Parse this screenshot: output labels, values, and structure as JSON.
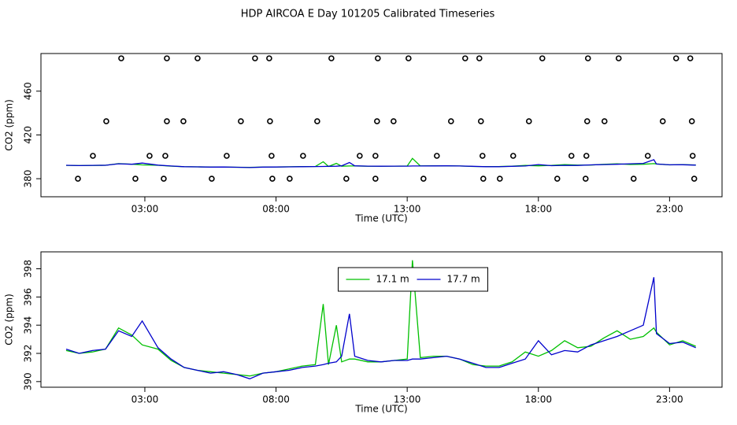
{
  "title": "HDP AIRCOA E  Day 101205  Calibrated Timeseries",
  "chart_data": [
    {
      "type": "line",
      "xlabel": "Time (UTC)",
      "ylabel": "CO2 (ppm)",
      "xlim": [
        -0.96,
        25.0
      ],
      "ylim": [
        363.5,
        494.4
      ],
      "xticks": [
        {
          "value": 3,
          "label": "03:00"
        },
        {
          "value": 8,
          "label": "08:00"
        },
        {
          "value": 13,
          "label": "13:00"
        },
        {
          "value": 18,
          "label": "18:00"
        },
        {
          "value": 23,
          "label": "23:00"
        }
      ],
      "yticks": [
        380,
        420,
        460
      ],
      "x": [
        0,
        0.5,
        1,
        1.5,
        2,
        2.5,
        2.9,
        3.5,
        4,
        4.5,
        5,
        5.5,
        6,
        6.5,
        7,
        7.5,
        8,
        8.5,
        9,
        9.5,
        9.8,
        10,
        10.3,
        10.5,
        10.8,
        11,
        11.5,
        12,
        12.5,
        13,
        13.2,
        13.5,
        14,
        14.5,
        15,
        15.5,
        16,
        16.5,
        17,
        17.5,
        18,
        18.5,
        19,
        19.5,
        20,
        20.5,
        21,
        21.5,
        22,
        22.4,
        22.5,
        23,
        23.5,
        24
      ],
      "series": [
        {
          "color": "#00c000",
          "values": [
            392.2,
            392.0,
            392.1,
            392.3,
            393.8,
            393.3,
            392.6,
            392.3,
            391.5,
            391.0,
            390.8,
            390.7,
            390.6,
            390.5,
            390.4,
            390.6,
            390.7,
            390.9,
            391.1,
            391.2,
            395.5,
            391.2,
            394.0,
            391.4,
            391.6,
            391.6,
            391.4,
            391.4,
            391.5,
            391.6,
            398.6,
            391.7,
            391.8,
            391.8,
            391.6,
            391.2,
            391.1,
            391.1,
            391.4,
            392.1,
            391.8,
            392.2,
            392.9,
            392.4,
            392.5,
            393.1,
            393.6,
            393.0,
            393.2,
            393.8,
            393.5,
            392.6,
            392.9,
            392.5
          ]
        },
        {
          "color": "#0000cc",
          "values": [
            392.3,
            392.0,
            392.2,
            392.3,
            393.6,
            393.2,
            394.3,
            392.4,
            391.6,
            391.0,
            390.8,
            390.6,
            390.7,
            390.5,
            390.2,
            390.6,
            390.7,
            390.8,
            391.0,
            391.1,
            391.2,
            391.3,
            391.4,
            391.8,
            394.8,
            391.8,
            391.5,
            391.4,
            391.5,
            391.5,
            391.6,
            391.6,
            391.7,
            391.8,
            391.6,
            391.3,
            391.0,
            391.0,
            391.3,
            391.6,
            392.9,
            391.9,
            392.2,
            392.1,
            392.6,
            392.9,
            393.2,
            393.6,
            394.0,
            397.4,
            393.4,
            392.7,
            392.8,
            392.4
          ]
        },
        {
          "color": "#000000",
          "marker": "circle",
          "x": [
            2.1,
            3.84,
            5.01,
            7.2,
            7.74,
            10.11,
            11.88,
            13.05,
            15.21,
            15.75,
            18.15,
            19.89,
            21.06,
            23.25,
            23.79,
            1.53,
            3.84,
            4.47,
            6.66,
            7.77,
            9.57,
            11.85,
            12.48,
            14.67,
            15.81,
            17.64,
            19.86,
            20.52,
            22.74,
            23.85,
            1.02,
            3.18,
            3.78,
            6.12,
            7.83,
            9.03,
            11.19,
            11.79,
            14.13,
            15.87,
            17.04,
            19.26,
            19.83,
            22.17,
            23.88,
            0.45,
            2.64,
            3.72,
            5.55,
            7.86,
            8.52,
            10.68,
            11.79,
            13.62,
            15.9,
            16.53,
            18.72,
            19.8,
            21.63,
            23.94
          ],
          "values": [
            490,
            490,
            490,
            490,
            490,
            490,
            490,
            490,
            490,
            490,
            490,
            490,
            490,
            490,
            490,
            432.5,
            432.5,
            432.5,
            432.5,
            432.5,
            432.5,
            432.5,
            432.5,
            432.5,
            432.5,
            432.5,
            432.5,
            432.5,
            432.5,
            432.5,
            400.9,
            400.9,
            400.9,
            400.9,
            400.9,
            400.9,
            400.9,
            400.9,
            400.9,
            400.9,
            400.9,
            400.9,
            400.9,
            400.9,
            400.9,
            380,
            380,
            380,
            380,
            380,
            380,
            380,
            380,
            380,
            380,
            380,
            380,
            380,
            380,
            380
          ]
        }
      ]
    },
    {
      "type": "line",
      "xlabel": "Time (UTC)",
      "ylabel": "CO2 (ppm)",
      "xlim": [
        -0.96,
        25.0
      ],
      "ylim": [
        389.6,
        399.2
      ],
      "legend": "top",
      "xticks": [
        {
          "value": 3,
          "label": "03:00"
        },
        {
          "value": 8,
          "label": "08:00"
        },
        {
          "value": 13,
          "label": "13:00"
        },
        {
          "value": 18,
          "label": "18:00"
        },
        {
          "value": 23,
          "label": "23:00"
        }
      ],
      "yticks": [
        390,
        392,
        394,
        396,
        398
      ],
      "x": [
        0,
        0.5,
        1,
        1.5,
        2,
        2.5,
        2.9,
        3.5,
        4,
        4.5,
        5,
        5.5,
        6,
        6.5,
        7,
        7.5,
        8,
        8.5,
        9,
        9.5,
        9.8,
        10,
        10.3,
        10.5,
        10.8,
        11,
        11.5,
        12,
        12.5,
        13,
        13.2,
        13.5,
        14,
        14.5,
        15,
        15.5,
        16,
        16.5,
        17,
        17.5,
        18,
        18.5,
        19,
        19.5,
        20,
        20.5,
        21,
        21.5,
        22,
        22.4,
        22.5,
        23,
        23.5,
        24
      ],
      "series": [
        {
          "name": "17.1 m",
          "color": "#00c000",
          "values": [
            392.2,
            392.0,
            392.1,
            392.3,
            393.8,
            393.3,
            392.6,
            392.3,
            391.5,
            391.0,
            390.8,
            390.7,
            390.6,
            390.5,
            390.4,
            390.6,
            390.7,
            390.9,
            391.1,
            391.2,
            395.5,
            391.2,
            394.0,
            391.4,
            391.6,
            391.6,
            391.4,
            391.4,
            391.5,
            391.6,
            398.6,
            391.7,
            391.8,
            391.8,
            391.6,
            391.2,
            391.1,
            391.1,
            391.4,
            392.1,
            391.8,
            392.2,
            392.9,
            392.4,
            392.5,
            393.1,
            393.6,
            393.0,
            393.2,
            393.8,
            393.5,
            392.6,
            392.9,
            392.5
          ]
        },
        {
          "name": "17.7 m",
          "color": "#0000cc",
          "values": [
            392.3,
            392.0,
            392.2,
            392.3,
            393.6,
            393.2,
            394.3,
            392.4,
            391.6,
            391.0,
            390.8,
            390.6,
            390.7,
            390.5,
            390.2,
            390.6,
            390.7,
            390.8,
            391.0,
            391.1,
            391.2,
            391.3,
            391.4,
            391.8,
            394.8,
            391.8,
            391.5,
            391.4,
            391.5,
            391.5,
            391.6,
            391.6,
            391.7,
            391.8,
            391.6,
            391.3,
            391.0,
            391.0,
            391.3,
            391.6,
            392.9,
            391.9,
            392.2,
            392.1,
            392.6,
            392.9,
            393.2,
            393.6,
            394.0,
            397.4,
            393.4,
            392.7,
            392.8,
            392.4
          ]
        }
      ]
    }
  ]
}
